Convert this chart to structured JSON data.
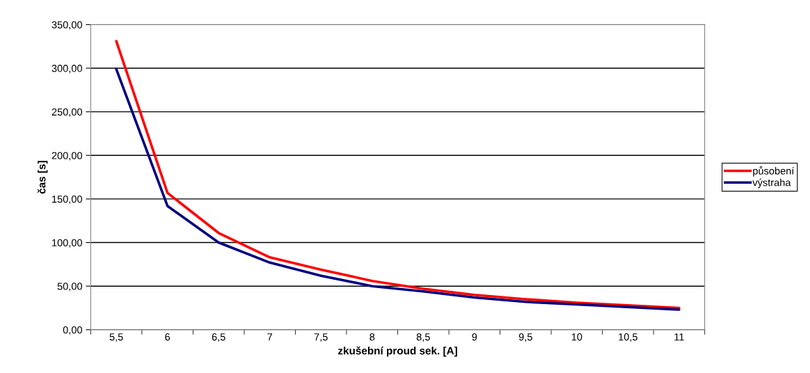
{
  "chart_data": {
    "type": "line",
    "xlabel": "zkušební proud sek. [A]",
    "ylabel": "čas [s]",
    "categories": [
      "5,5",
      "6",
      "6,5",
      "7",
      "7,5",
      "8",
      "8,5",
      "9",
      "9,5",
      "10",
      "10,5",
      "11"
    ],
    "series": [
      {
        "name": "působení",
        "color": "#ff0000",
        "values": [
          331,
          157,
          111,
          83,
          69,
          56,
          47,
          40,
          35,
          31,
          28,
          25
        ]
      },
      {
        "name": "výstraha",
        "color": "#000080",
        "values": [
          299,
          142,
          100,
          77,
          62,
          50,
          44,
          37,
          32,
          29,
          26,
          23
        ]
      }
    ],
    "ylim": [
      0,
      350
    ],
    "yticks": [
      {
        "value": 0,
        "label": "0,00"
      },
      {
        "value": 50,
        "label": "50,00"
      },
      {
        "value": 100,
        "label": "100,00"
      },
      {
        "value": 150,
        "label": "150,00"
      },
      {
        "value": 200,
        "label": "200,00"
      },
      {
        "value": 250,
        "label": "250,00"
      },
      {
        "value": 300,
        "label": "300,00"
      },
      {
        "value": 350,
        "label": "350,00"
      }
    ],
    "grid": "y",
    "legend": "right",
    "marker": "none",
    "line_style": "solid"
  }
}
